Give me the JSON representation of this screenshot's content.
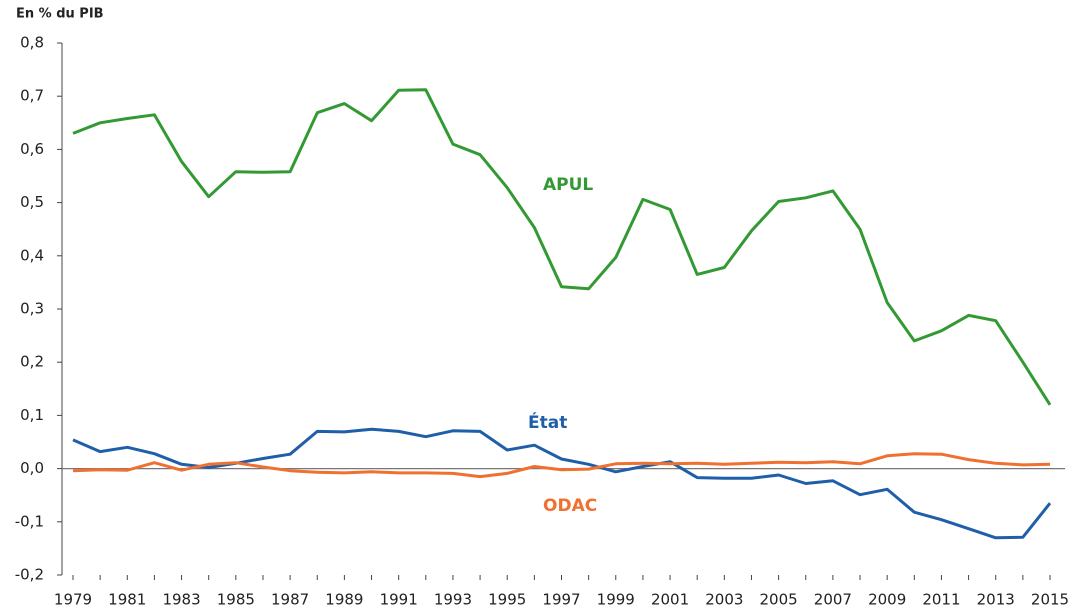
{
  "chart_data": {
    "type": "line",
    "y_axis_label": "En % du PIB",
    "categories": [
      "1979",
      null,
      "1981",
      null,
      "1983",
      null,
      "1985",
      null,
      "1987",
      null,
      "1989",
      null,
      "1991",
      null,
      "1993",
      null,
      "1995",
      null,
      "1997",
      null,
      "1999",
      null,
      "2001",
      null,
      "2003",
      null,
      "2005",
      null,
      "2007",
      null,
      "2009",
      null,
      "2011",
      null,
      "2013",
      null,
      "2015"
    ],
    "ylim": [
      -0.2,
      0.8
    ],
    "yticks": [
      {
        "value": -0.2,
        "label": "-0,2"
      },
      {
        "value": -0.1,
        "label": "-0,1"
      },
      {
        "value": 0,
        "label": "0,0"
      },
      {
        "value": 0.1,
        "label": "0,1"
      },
      {
        "value": 0.2,
        "label": "0,2"
      },
      {
        "value": 0.3,
        "label": "0,3"
      },
      {
        "value": 0.4,
        "label": "0,4"
      },
      {
        "value": 0.5,
        "label": "0,5"
      },
      {
        "value": 0.6,
        "label": "0,6"
      },
      {
        "value": 0.7,
        "label": "0,7"
      },
      {
        "value": 0.8,
        "label": "0,8"
      }
    ],
    "series": [
      {
        "name": "APUL",
        "color": "#339933",
        "values": [
          0.63,
          0.65,
          0.658,
          0.665,
          0.577,
          0.511,
          0.558,
          0.557,
          0.558,
          0.669,
          0.686,
          0.654,
          0.711,
          0.712,
          0.61,
          0.59,
          0.528,
          0.453,
          0.342,
          0.338,
          0.397,
          0.506,
          0.487,
          0.365,
          0.378,
          0.447,
          0.502,
          0.509,
          0.522,
          0.45,
          0.312,
          0.24,
          0.259,
          0.288,
          0.278,
          0.2,
          0.12
        ]
      },
      {
        "name": "État",
        "color": "#1f5ea8",
        "values": [
          0.054,
          0.032,
          0.04,
          0.028,
          0.008,
          0.002,
          0.01,
          0.019,
          0.027,
          0.07,
          0.069,
          0.074,
          0.07,
          0.06,
          0.071,
          0.07,
          0.035,
          0.044,
          0.018,
          0.008,
          -0.006,
          0.004,
          0.013,
          -0.017,
          -0.018,
          -0.018,
          -0.012,
          -0.028,
          -0.023,
          -0.049,
          -0.039,
          -0.082,
          -0.096,
          -0.113,
          -0.13,
          -0.129,
          -0.065
        ]
      },
      {
        "name": "ODAC",
        "color": "#f07030",
        "values": [
          -0.004,
          -0.002,
          -0.003,
          0.011,
          -0.003,
          0.008,
          0.011,
          0.003,
          -0.004,
          -0.007,
          -0.008,
          -0.006,
          -0.008,
          -0.008,
          -0.009,
          -0.015,
          -0.009,
          0.004,
          -0.002,
          -0.001,
          0.009,
          0.01,
          0.009,
          0.01,
          0.008,
          0.01,
          0.012,
          0.011,
          0.013,
          0.009,
          0.024,
          0.028,
          0.027,
          0.017,
          0.01,
          0.007,
          0.008
        ]
      }
    ]
  }
}
